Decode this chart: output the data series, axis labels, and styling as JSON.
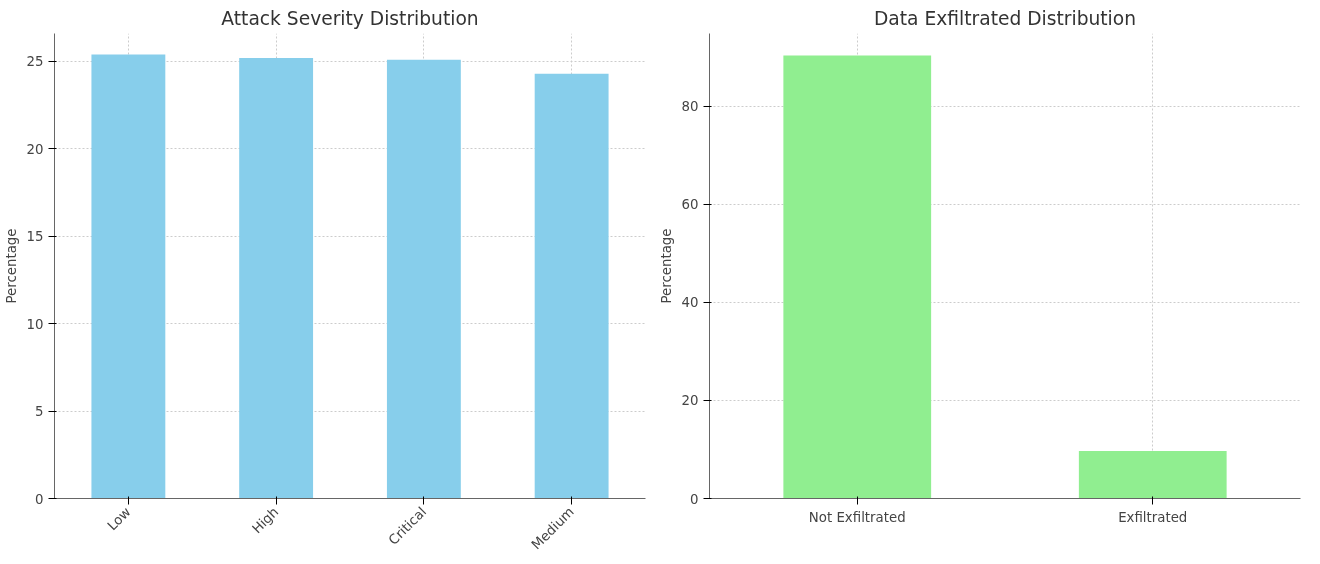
{
  "chart_data": [
    {
      "type": "bar",
      "title": "Attack Severity Distribution",
      "ylabel": "Percentage",
      "categories": [
        "Low",
        "High",
        "Critical",
        "Medium"
      ],
      "values": [
        25.4,
        25.2,
        25.1,
        24.3
      ],
      "color": "#87ceeb",
      "ylim": [
        0,
        26.6
      ],
      "yticks": [
        0,
        5,
        10,
        15,
        20,
        25
      ],
      "grid": true
    },
    {
      "type": "bar",
      "title": "Data Exfiltrated Distribution",
      "ylabel": "Percentage",
      "categories": [
        "Not Exfiltrated",
        "Exfiltrated"
      ],
      "values": [
        90.3,
        9.7
      ],
      "color": "#90ee90",
      "ylim": [
        0,
        94.8
      ],
      "yticks": [
        0,
        20,
        40,
        60,
        80
      ],
      "grid": true
    }
  ]
}
